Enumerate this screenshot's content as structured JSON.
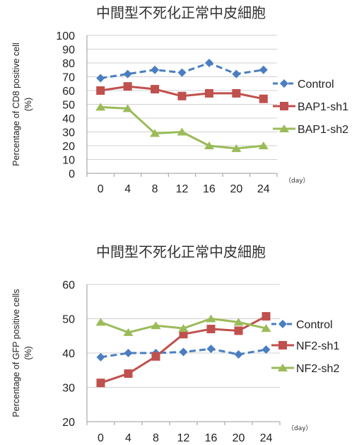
{
  "chart_data": [
    {
      "type": "line",
      "title": "中間型不死化正常中皮細胞",
      "ylabel": "Percentage of CD8 positive cell\n(%)",
      "xunit": "（day）",
      "categories": [
        "0",
        "4",
        "8",
        "12",
        "16",
        "20",
        "24"
      ],
      "ylim": [
        0,
        100
      ],
      "yticks": [
        0,
        10,
        20,
        30,
        40,
        50,
        60,
        70,
        80,
        90,
        100
      ],
      "grid": true,
      "legend": "right",
      "series": [
        {
          "name": "Control",
          "values": [
            69,
            72,
            75,
            73,
            80,
            72,
            75
          ],
          "color": "#4a7ec0",
          "marker": "diamond",
          "dash": true
        },
        {
          "name": "BAP1-sh1",
          "values": [
            60,
            63,
            61,
            56,
            58,
            58,
            54
          ],
          "color": "#c0504d",
          "marker": "square",
          "dash": false
        },
        {
          "name": "BAP1-sh2",
          "values": [
            48,
            47,
            29,
            30,
            20,
            18,
            20
          ],
          "color": "#9bbb59",
          "marker": "triangle",
          "dash": false
        }
      ]
    },
    {
      "type": "line",
      "title": "中間型不死化正常中皮細胞",
      "ylabel": "Percentage of GFP positive cells\n(%)",
      "xunit": "（day）",
      "categories": [
        "0",
        "4",
        "8",
        "12",
        "16",
        "20",
        "24"
      ],
      "ylim": [
        20,
        60
      ],
      "yticks": [
        20,
        30,
        40,
        50,
        60
      ],
      "grid": true,
      "legend": "right",
      "series": [
        {
          "name": "Control",
          "values": [
            38.8,
            40,
            40,
            40.3,
            41.2,
            39.6,
            41
          ],
          "color": "#4a7ec0",
          "marker": "diamond",
          "dash": true
        },
        {
          "name": "NF2-sh1",
          "values": [
            31.3,
            34,
            39,
            45.5,
            47,
            46.5,
            50.7
          ],
          "color": "#c0504d",
          "marker": "square",
          "dash": false
        },
        {
          "name": "NF2-sh2",
          "values": [
            49,
            46,
            48,
            47.2,
            50,
            49,
            47.2
          ],
          "color": "#9bbb59",
          "marker": "triangle",
          "dash": false
        }
      ]
    }
  ]
}
